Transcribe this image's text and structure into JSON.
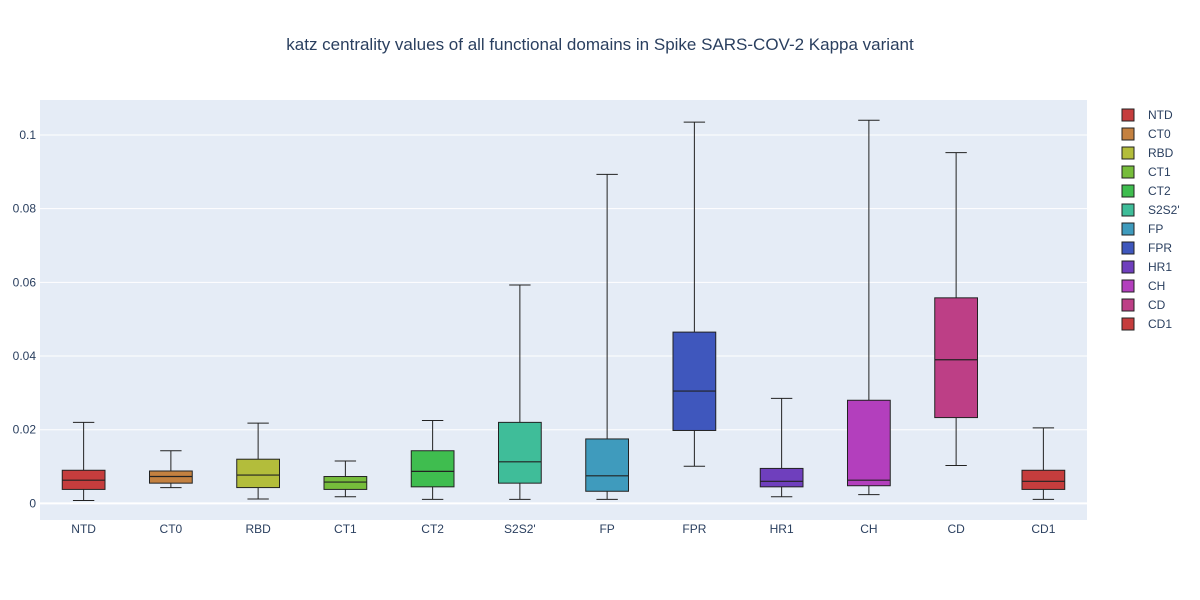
{
  "chart_data": {
    "type": "box",
    "title": "katz centrality values of all functional domains in Spike SARS-COV-2 Kappa variant",
    "xlabel": "",
    "ylabel": "",
    "ylim": [
      -0.0045,
      0.1095
    ],
    "yticks": [
      0,
      0.02,
      0.04,
      0.06,
      0.08,
      0.1
    ],
    "ytick_labels": [
      "0",
      "0.02",
      "0.04",
      "0.06",
      "0.08",
      "0.1"
    ],
    "grid": true,
    "legend_position": "right",
    "series": [
      {
        "name": "NTD",
        "color": "#c53d3d",
        "min": 0.0008,
        "q1": 0.0038,
        "median": 0.0063,
        "q3": 0.009,
        "max": 0.022
      },
      {
        "name": "CT0",
        "color": "#c48140",
        "min": 0.0043,
        "q1": 0.0055,
        "median": 0.0073,
        "q3": 0.0088,
        "max": 0.0143
      },
      {
        "name": "RBD",
        "color": "#b3bd3b",
        "min": 0.0012,
        "q1": 0.0043,
        "median": 0.0077,
        "q3": 0.012,
        "max": 0.0218
      },
      {
        "name": "CT1",
        "color": "#76bd3b",
        "min": 0.0018,
        "q1": 0.0038,
        "median": 0.0058,
        "q3": 0.0073,
        "max": 0.0115
      },
      {
        "name": "CT2",
        "color": "#3fbd4f",
        "min": 0.0011,
        "q1": 0.0045,
        "median": 0.0087,
        "q3": 0.0143,
        "max": 0.0225
      },
      {
        "name": "S2S2'",
        "color": "#3fbd99",
        "min": 0.0011,
        "q1": 0.0055,
        "median": 0.0113,
        "q3": 0.022,
        "max": 0.0593
      },
      {
        "name": "FP",
        "color": "#3f9bbd",
        "min": 0.0011,
        "q1": 0.0033,
        "median": 0.0075,
        "q3": 0.0175,
        "max": 0.0893
      },
      {
        "name": "FPR",
        "color": "#3f57bd",
        "min": 0.0101,
        "q1": 0.0198,
        "median": 0.0305,
        "q3": 0.0465,
        "max": 0.1035
      },
      {
        "name": "HR1",
        "color": "#6f3fbd",
        "min": 0.0018,
        "q1": 0.0045,
        "median": 0.006,
        "q3": 0.0095,
        "max": 0.0285
      },
      {
        "name": "CH",
        "color": "#b33fbd",
        "min": 0.0024,
        "q1": 0.0048,
        "median": 0.0063,
        "q3": 0.028,
        "max": 0.104
      },
      {
        "name": "CD",
        "color": "#bd3f86",
        "min": 0.0103,
        "q1": 0.0233,
        "median": 0.039,
        "q3": 0.0558,
        "max": 0.0952
      },
      {
        "name": "CD1",
        "color": "#c53d3d",
        "min": 0.0011,
        "q1": 0.0038,
        "median": 0.006,
        "q3": 0.009,
        "max": 0.0205
      }
    ]
  }
}
